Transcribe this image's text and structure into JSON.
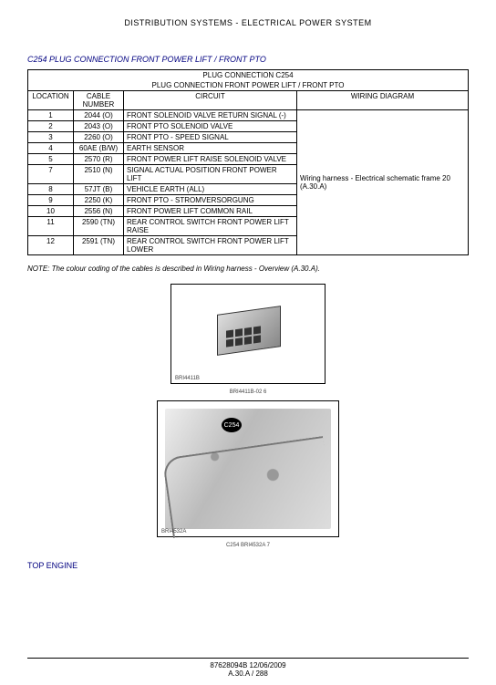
{
  "header": "DISTRIBUTION SYSTEMS - ELECTRICAL POWER SYSTEM",
  "section_title": "C254 PLUG CONNECTION FRONT POWER LIFT / FRONT PTO",
  "table": {
    "title1": "PLUG CONNECTION C254",
    "title2": "PLUG CONNECTION FRONT POWER LIFT / FRONT PTO",
    "col_location": "LOCATION",
    "col_cable": "CABLE NUMBER",
    "col_circuit": "CIRCUIT",
    "col_wiring": "WIRING DIAGRAM",
    "wiring_text": "Wiring harness - Electrical schematic frame 20 (A.30.A)",
    "rows": [
      {
        "loc": "1",
        "cable": "2044 (O)",
        "circuit": "FRONT SOLENOID VALVE RETURN SIGNAL (-)"
      },
      {
        "loc": "2",
        "cable": "2043 (O)",
        "circuit": "FRONT PTO SOLENOID VALVE"
      },
      {
        "loc": "3",
        "cable": "2260 (O)",
        "circuit": "FRONT PTO - SPEED SIGNAL"
      },
      {
        "loc": "4",
        "cable": "60AE (B/W)",
        "circuit": "EARTH SENSOR"
      },
      {
        "loc": "5",
        "cable": "2570 (R)",
        "circuit": "FRONT POWER LIFT RAISE SOLENOID VALVE"
      },
      {
        "loc": "7",
        "cable": "2510 (N)",
        "circuit": "SIGNAL ACTUAL POSITION FRONT POWER LIFT"
      },
      {
        "loc": "8",
        "cable": "57JT (B)",
        "circuit": "VEHICLE EARTH (ALL)"
      },
      {
        "loc": "9",
        "cable": "2250 (K)",
        "circuit": "FRONT PTO - STROMVERSORGUNG"
      },
      {
        "loc": "10",
        "cable": "2556 (N)",
        "circuit": "FRONT POWER LIFT COMMON RAIL"
      },
      {
        "loc": "11",
        "cable": "2590 (TN)",
        "circuit": "REAR CONTROL SWITCH FRONT POWER LIFT RAISE"
      },
      {
        "loc": "12",
        "cable": "2591 (TN)",
        "circuit": "REAR CONTROL SWITCH FRONT POWER LIFT LOWER"
      }
    ]
  },
  "note": "NOTE: The colour coding of the cables is described in Wiring harness - Overview (A.30.A).",
  "fig1": {
    "ref": "BRI4411B",
    "cap": "BRI4411B-02   6"
  },
  "fig2": {
    "ref": "BRI4532A",
    "label": "C254",
    "cap": "C254 BRI4532A   7"
  },
  "top_engine": "TOP ENGINE",
  "footer": {
    "doc": "87628094B 12/06/2009",
    "page": "A.30.A / 288"
  }
}
